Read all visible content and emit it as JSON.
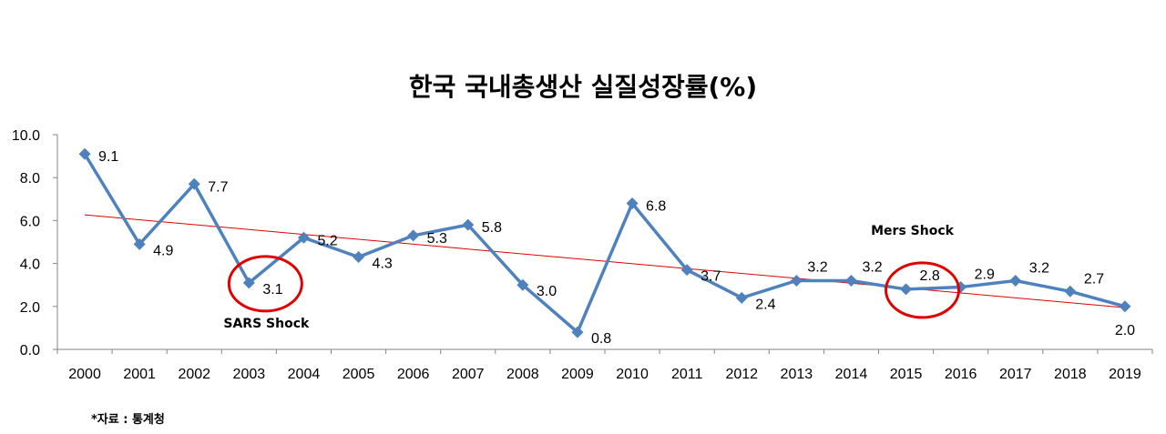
{
  "title": "한국 국내총생산 실질성장률(%)",
  "source": "*자료 : 통계청",
  "colors": {
    "series": "#4f81bd",
    "trendline": "#e00000",
    "highlight": "#e00000",
    "axis": "#868686"
  },
  "chart_data": {
    "type": "line",
    "title": "한국 국내총생산 실질성장률(%)",
    "xlabel": "",
    "ylabel": "",
    "ylim": [
      0,
      10
    ],
    "yticks": [
      "0.0",
      "2.0",
      "4.0",
      "6.0",
      "8.0",
      "10.0"
    ],
    "categories": [
      "2000",
      "2001",
      "2002",
      "2003",
      "2004",
      "2005",
      "2006",
      "2007",
      "2008",
      "2009",
      "2010",
      "2011",
      "2012",
      "2013",
      "2014",
      "2015",
      "2016",
      "2017",
      "2018",
      "2019"
    ],
    "series": [
      {
        "values": [
          9.1,
          4.9,
          7.7,
          3.1,
          5.2,
          4.3,
          5.3,
          5.8,
          3.0,
          0.8,
          6.8,
          3.7,
          2.4,
          3.2,
          3.2,
          2.8,
          2.9,
          3.2,
          2.7,
          2.0
        ],
        "labels": [
          "9.1",
          "4.9",
          "7.7",
          "3.1",
          "5.2",
          "4.3",
          "5.3",
          "5.8",
          "3.0",
          "0.8",
          "6.8",
          "3.7",
          "2.4",
          "3.2",
          "3.2",
          "2.8",
          "2.9",
          "3.2",
          "2.7",
          "2.0"
        ],
        "marker": "diamond"
      }
    ],
    "trendline": {
      "type": "linear"
    },
    "grid": false,
    "legend": "none",
    "annotations": [
      {
        "text": "SARS Shock",
        "category": "2003",
        "circled": true
      },
      {
        "text": "Mers Shock",
        "category": "2015",
        "circled": true
      }
    ]
  }
}
